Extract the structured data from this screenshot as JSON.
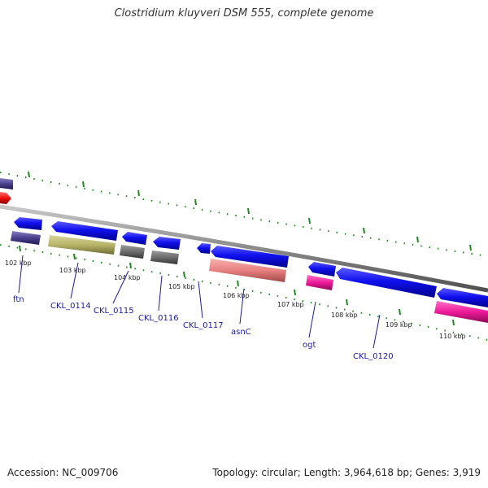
{
  "header": {
    "title": "Clostridium kluyveri DSM 555, complete genome"
  },
  "footer": {
    "accession": "Accession: NC_009706",
    "topology": "Topology: circular; Length: 3,964,618 bp; Genes: 3,919"
  },
  "colors": {
    "backbone": "#8a8a8a",
    "tick": "#1e8a1e",
    "gene_forward": "#1010ee",
    "gene_reverse": "#1010ee",
    "label": "#1a1aa6",
    "purple_gene": "#4a3f8c",
    "olive_gene": "#b8b56a",
    "gray_gene": "#6d6d6d",
    "salmon_gene": "#e88080",
    "magenta_gene": "#ee1a9a",
    "red_gene": "#ee1111"
  },
  "diagram": {
    "ticks": [
      {
        "label": "102 kbp"
      },
      {
        "label": "103 kbp"
      },
      {
        "label": "104 kbp"
      },
      {
        "label": "105 kbp"
      },
      {
        "label": "106 kbp"
      },
      {
        "label": "107 kbp"
      },
      {
        "label": "108 kbp"
      },
      {
        "label": "109 kbp"
      },
      {
        "label": "110 kbp"
      }
    ],
    "genes": [
      {
        "label": "ftn"
      },
      {
        "label": "CKL_0114"
      },
      {
        "label": "CKL_0115"
      },
      {
        "label": "CKL_0116"
      },
      {
        "label": "CKL_0117"
      },
      {
        "label": "asnC"
      },
      {
        "label": "ogt"
      },
      {
        "label": "CKL_0120"
      }
    ]
  }
}
